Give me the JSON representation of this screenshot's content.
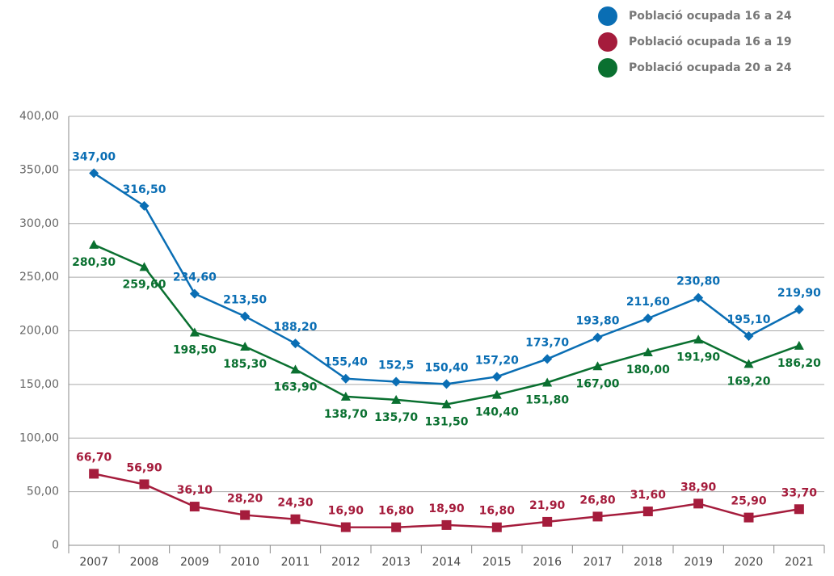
{
  "chart_data": {
    "type": "line",
    "categories": [
      "2007",
      "2008",
      "2009",
      "2010",
      "2011",
      "2012",
      "2013",
      "2014",
      "2015",
      "2016",
      "2017",
      "2018",
      "2019",
      "2020",
      "2021"
    ],
    "series": [
      {
        "name": "Població ocupada 16 a 24",
        "color": "#0a6eb4",
        "marker": "diamond",
        "values": [
          347,
          316.5,
          234.6,
          213.5,
          188.2,
          155.4,
          152.5,
          150.4,
          157.2,
          173.7,
          193.8,
          211.6,
          230.8,
          195.1,
          219.9
        ],
        "value_labels": [
          "347,00",
          "316,50",
          "234,60",
          "213,50",
          "188,20",
          "155,40",
          "152,5",
          "150,40",
          "157,20",
          "173,70",
          "193,80",
          "211,60",
          "230,80",
          "195,10",
          "219,90"
        ]
      },
      {
        "name": "Població ocupada 16 a 19",
        "color": "#a51c3c",
        "marker": "square",
        "values": [
          66.7,
          56.9,
          36.1,
          28.2,
          24.3,
          16.9,
          16.8,
          18.9,
          16.8,
          21.9,
          26.8,
          31.6,
          38.9,
          25.9,
          33.7
        ],
        "value_labels": [
          "66,70",
          "56,90",
          "36,10",
          "28,20",
          "24,30",
          "16,90",
          "16,80",
          "18,90",
          "16,80",
          "21,90",
          "26,80",
          "31,60",
          "38,90",
          "25,90",
          "33,70"
        ]
      },
      {
        "name": "Població ocupada 20 a 24",
        "color": "#0a7030",
        "marker": "triangle",
        "values": [
          280.3,
          259.6,
          198.5,
          185.3,
          163.9,
          138.7,
          135.7,
          131.5,
          140.4,
          151.8,
          167,
          180,
          191.9,
          169.2,
          186.2
        ],
        "value_labels": [
          "280,30",
          "259,60",
          "198,50",
          "185,30",
          "163,90",
          "138,70",
          "135,70",
          "131,50",
          "140,40",
          "151,80",
          "167,00",
          "180,00",
          "191,90",
          "169,20",
          "186,20"
        ]
      }
    ],
    "ylim": [
      0,
      400
    ],
    "yticks": [
      0,
      {
        "value": 50,
        "label": "50,00"
      },
      {
        "value": 100,
        "label": "100,00"
      },
      {
        "value": 150,
        "label": "150,00"
      },
      {
        "value": 200,
        "label": "200,00"
      },
      {
        "value": 250,
        "label": "250,00"
      },
      {
        "value": 300,
        "label": "300,00"
      },
      {
        "value": 350,
        "label": "350,00"
      },
      {
        "value": 400,
        "label": "400,00"
      }
    ],
    "grid": true,
    "legend": "top-right"
  }
}
